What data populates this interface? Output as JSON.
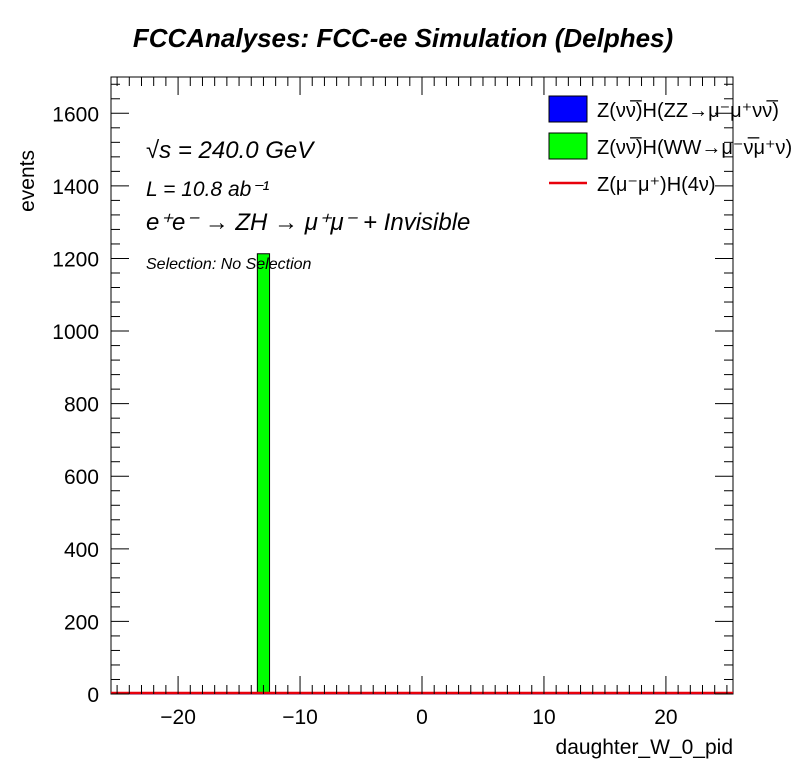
{
  "chart_data": {
    "type": "bar",
    "title": "FCCAnalyses: FCC-ee Simulation (Delphes)",
    "xlabel": "daughter_W_0_pid",
    "ylabel": "events",
    "xlim": [
      -25.5,
      25.5
    ],
    "ylim": [
      0,
      1700
    ],
    "x_ticks": [
      -20,
      -10,
      0,
      10,
      20
    ],
    "x_tick_labels": [
      "−20",
      "−10",
      "0",
      "10",
      "20"
    ],
    "y_ticks": [
      0,
      200,
      400,
      600,
      800,
      1000,
      1200,
      1400,
      1600
    ],
    "y_tick_labels": [
      "0",
      "200",
      "400",
      "600",
      "800",
      "1000",
      "1200",
      "1400",
      "1600"
    ],
    "grid": false,
    "legend_position": "top-right",
    "series": [
      {
        "name": "Z(νν̅)H(ZZ→μ⁻μ⁺νν̅)",
        "style": "fill",
        "color": "#0000ff",
        "bins": []
      },
      {
        "name": "Z(νν̅)H(WW→μ⁻ν̅μ⁺ν)",
        "style": "fill",
        "color": "#00ff00",
        "bins": [
          {
            "x0": -13.5,
            "x1": -12.5,
            "value": 1213
          }
        ]
      },
      {
        "name": "Z(μ⁻μ⁺)H(4ν)",
        "style": "line",
        "color": "#e8000b",
        "bins": []
      }
    ],
    "annotations": {
      "sqrt_s": "√s = 240.0 GeV",
      "lumi": "L = 10.8 ab⁻¹",
      "process": "e⁺e⁻ → ZH → μ⁺μ⁻ + Invisible",
      "selection": "Selection: No Selection"
    }
  }
}
